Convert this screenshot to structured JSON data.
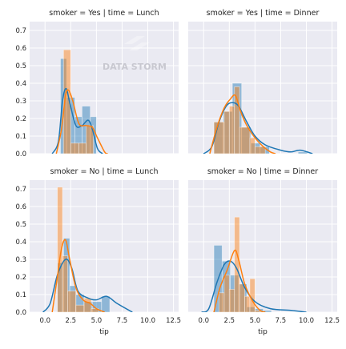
{
  "chart_data": {
    "type": "histogram_with_kde",
    "facet_grid": {
      "rows": "smoker",
      "cols": "time"
    },
    "xlabel": "tip",
    "ylabel": "",
    "xlim": [
      -1.5,
      13
    ],
    "ylim": [
      0,
      0.75
    ],
    "xticks": [
      0.0,
      2.5,
      5.0,
      7.5,
      10.0,
      12.5
    ],
    "xtick_labels": [
      "0.0",
      "2.5",
      "5.0",
      "7.5",
      "10.0",
      "12.5"
    ],
    "yticks": [
      0.0,
      0.1,
      0.2,
      0.3,
      0.4,
      0.5,
      0.6,
      0.7
    ],
    "ytick_labels": [
      "0.0",
      "0.1",
      "0.2",
      "0.3",
      "0.4",
      "0.5",
      "0.6",
      "0.7"
    ],
    "grid": true,
    "colors": {
      "series_blue": "#1f77b4",
      "series_orange": "#ff7f0e",
      "panel_bg": "#eaeaf2",
      "grid": "#ffffff",
      "text": "#262626"
    },
    "watermark": "DATA STORM",
    "panels": [
      {
        "title": "smoker = Yes | time = Lunch",
        "blue_bars": [
          [
            1.5,
            2.1,
            0.54
          ],
          [
            2.1,
            2.9,
            0.32
          ],
          [
            2.9,
            3.6,
            0.21
          ],
          [
            3.6,
            4.4,
            0.27
          ],
          [
            4.4,
            5.0,
            0.21
          ]
        ],
        "orange_bars": [
          [
            1.8,
            2.5,
            0.59
          ],
          [
            2.5,
            3.3,
            0.06
          ],
          [
            3.3,
            4.0,
            0.06
          ],
          [
            4.0,
            4.7,
            0.16
          ],
          [
            4.7,
            5.4,
            0.0
          ]
        ],
        "blue_kde": [
          [
            0.7,
            0.0
          ],
          [
            1.3,
            0.07
          ],
          [
            1.7,
            0.3
          ],
          [
            2.05,
            0.37
          ],
          [
            2.4,
            0.29
          ],
          [
            3.0,
            0.16
          ],
          [
            3.6,
            0.16
          ],
          [
            4.2,
            0.19
          ],
          [
            4.6,
            0.14
          ],
          [
            5.1,
            0.03
          ],
          [
            5.6,
            0.0
          ]
        ],
        "orange_kde": [
          [
            1.1,
            0.0
          ],
          [
            1.6,
            0.14
          ],
          [
            2.0,
            0.33
          ],
          [
            2.3,
            0.36
          ],
          [
            2.7,
            0.3
          ],
          [
            3.3,
            0.17
          ],
          [
            4.0,
            0.16
          ],
          [
            4.6,
            0.15
          ],
          [
            5.1,
            0.09
          ],
          [
            5.8,
            0.01
          ],
          [
            6.1,
            0.0
          ]
        ]
      },
      {
        "title": "smoker = Yes | time = Dinner",
        "blue_bars": [
          [
            1.0,
            1.9,
            0.18
          ],
          [
            1.9,
            2.8,
            0.24
          ],
          [
            2.8,
            3.7,
            0.4
          ],
          [
            3.7,
            4.6,
            0.15
          ],
          [
            4.6,
            5.5,
            0.06
          ],
          [
            5.5,
            6.4,
            0.04
          ],
          [
            9.2,
            10.1,
            0.01
          ]
        ],
        "orange_bars": [
          [
            1.0,
            2.0,
            0.18
          ],
          [
            2.0,
            2.5,
            0.24
          ],
          [
            2.5,
            3.0,
            0.27
          ],
          [
            3.0,
            3.5,
            0.38
          ],
          [
            3.5,
            4.5,
            0.15
          ],
          [
            4.5,
            5.0,
            0.09
          ],
          [
            5.0,
            6.0,
            0.04
          ]
        ],
        "blue_kde": [
          [
            0.0,
            0.0
          ],
          [
            0.8,
            0.04
          ],
          [
            1.5,
            0.18
          ],
          [
            2.2,
            0.27
          ],
          [
            2.8,
            0.29
          ],
          [
            3.4,
            0.27
          ],
          [
            4.2,
            0.18
          ],
          [
            5.0,
            0.1
          ],
          [
            6.0,
            0.05
          ],
          [
            7.5,
            0.02
          ],
          [
            8.5,
            0.01
          ],
          [
            9.4,
            0.02
          ],
          [
            10.6,
            0.0
          ]
        ],
        "orange_kde": [
          [
            0.6,
            0.0
          ],
          [
            1.3,
            0.15
          ],
          [
            2.0,
            0.26
          ],
          [
            2.6,
            0.31
          ],
          [
            3.1,
            0.33
          ],
          [
            3.6,
            0.24
          ],
          [
            4.2,
            0.16
          ],
          [
            5.0,
            0.09
          ],
          [
            5.8,
            0.04
          ],
          [
            6.5,
            0.01
          ],
          [
            7.0,
            0.0
          ]
        ]
      },
      {
        "title": "smoker = No | time = Lunch",
        "blue_bars": [
          [
            1.2,
            1.8,
            0.28
          ],
          [
            1.8,
            2.4,
            0.42
          ],
          [
            2.4,
            3.0,
            0.15
          ],
          [
            3.0,
            3.8,
            0.1
          ],
          [
            3.8,
            4.6,
            0.06
          ],
          [
            4.6,
            5.5,
            0.06
          ],
          [
            5.5,
            6.3,
            0.09
          ]
        ],
        "orange_bars": [
          [
            1.2,
            1.7,
            0.71
          ],
          [
            1.7,
            2.2,
            0.32
          ],
          [
            2.2,
            3.0,
            0.12
          ],
          [
            3.0,
            3.8,
            0.04
          ],
          [
            3.8,
            4.5,
            0.08
          ],
          [
            4.5,
            5.2,
            0.02
          ]
        ],
        "blue_kde": [
          [
            -0.2,
            0.0
          ],
          [
            0.5,
            0.05
          ],
          [
            1.2,
            0.21
          ],
          [
            2.0,
            0.3
          ],
          [
            2.6,
            0.25
          ],
          [
            3.2,
            0.12
          ],
          [
            4.2,
            0.08
          ],
          [
            5.0,
            0.07
          ],
          [
            6.0,
            0.09
          ],
          [
            7.0,
            0.05
          ],
          [
            8.5,
            0.0
          ]
        ],
        "orange_kde": [
          [
            0.7,
            0.0
          ],
          [
            1.2,
            0.2
          ],
          [
            1.6,
            0.36
          ],
          [
            2.0,
            0.41
          ],
          [
            2.4,
            0.3
          ],
          [
            3.0,
            0.14
          ],
          [
            3.7,
            0.07
          ],
          [
            4.4,
            0.05
          ],
          [
            5.0,
            0.02
          ],
          [
            5.8,
            0.0
          ]
        ]
      },
      {
        "title": "smoker = No | time = Dinner",
        "blue_bars": [
          [
            1.0,
            1.8,
            0.38
          ],
          [
            1.8,
            2.6,
            0.29
          ],
          [
            2.6,
            3.4,
            0.21
          ],
          [
            3.4,
            4.2,
            0.16
          ],
          [
            4.2,
            5.0,
            0.03
          ],
          [
            5.0,
            5.8,
            0.02
          ],
          [
            5.8,
            6.6,
            0.01
          ]
        ],
        "orange_bars": [
          [
            1.5,
            2.0,
            0.11
          ],
          [
            2.0,
            2.5,
            0.21
          ],
          [
            2.5,
            3.0,
            0.13
          ],
          [
            3.0,
            3.5,
            0.54
          ],
          [
            3.5,
            4.0,
            0.16
          ],
          [
            4.0,
            4.5,
            0.09
          ],
          [
            4.5,
            5.0,
            0.19
          ],
          [
            5.0,
            5.5,
            0.01
          ]
        ],
        "blue_kde": [
          [
            -0.2,
            0.0
          ],
          [
            0.5,
            0.02
          ],
          [
            1.3,
            0.17
          ],
          [
            2.0,
            0.27
          ],
          [
            2.6,
            0.29
          ],
          [
            3.2,
            0.25
          ],
          [
            4.0,
            0.14
          ],
          [
            5.0,
            0.06
          ],
          [
            6.5,
            0.02
          ],
          [
            8.5,
            0.01
          ],
          [
            10.0,
            0.0
          ]
        ],
        "orange_kde": [
          [
            1.0,
            0.0
          ],
          [
            1.6,
            0.14
          ],
          [
            2.3,
            0.24
          ],
          [
            3.0,
            0.35
          ],
          [
            3.4,
            0.3
          ],
          [
            4.0,
            0.16
          ],
          [
            4.8,
            0.06
          ],
          [
            5.5,
            0.01
          ],
          [
            6.0,
            0.0
          ]
        ]
      }
    ]
  }
}
